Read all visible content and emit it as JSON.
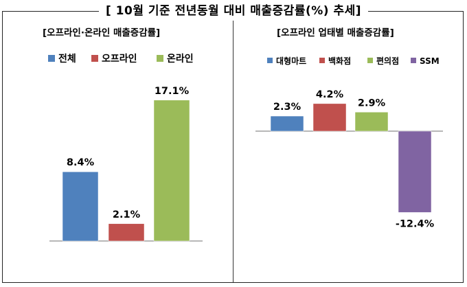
{
  "title": "[ 10월 기준 전년동월 대비 매출증감률(%) 추세]",
  "chart_data": [
    {
      "type": "bar",
      "title": "[오프라인·온라인 매출증감률]",
      "categories": [
        "전체",
        "오프라인",
        "온라인"
      ],
      "values": [
        8.4,
        2.1,
        17.1
      ],
      "data_labels": [
        "8.4%",
        "2.1%",
        "17.1%"
      ],
      "colors": [
        "#4f81bd",
        "#c0504d",
        "#9bbb59"
      ],
      "legend_position": "top",
      "grid": false
    },
    {
      "type": "bar",
      "title": "[오프라인 업태별 매출증감률]",
      "categories": [
        "대형마트",
        "백화점",
        "편의점",
        "SSM"
      ],
      "values": [
        2.3,
        4.2,
        2.9,
        -12.4
      ],
      "data_labels": [
        "2.3%",
        "4.2%",
        "2.9%",
        "-12.4%"
      ],
      "colors": [
        "#4f81bd",
        "#c0504d",
        "#9bbb59",
        "#8064a2"
      ],
      "legend_position": "top",
      "grid": false
    }
  ]
}
